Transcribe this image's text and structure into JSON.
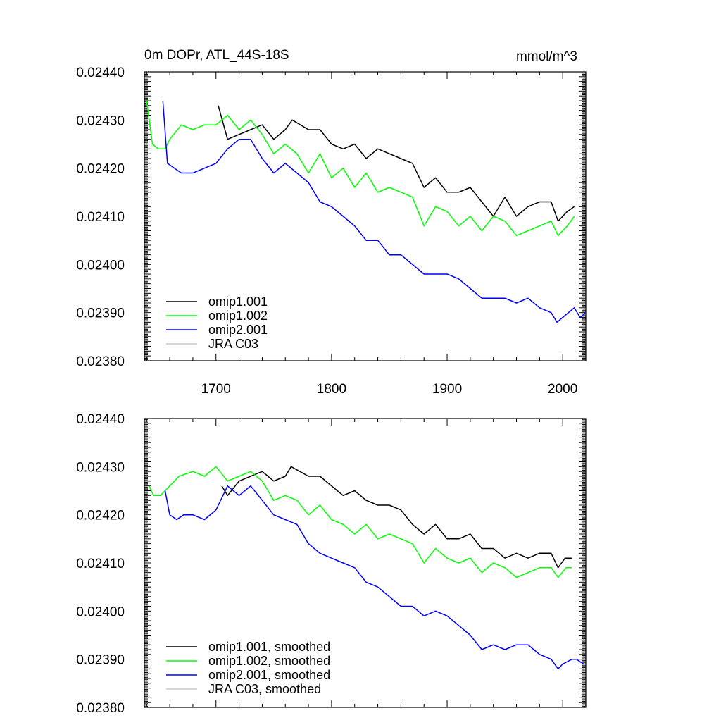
{
  "chart_data": [
    {
      "type": "line",
      "title_left": "0m DOPr, ATL_44S-18S",
      "title_right": "mmol/m^3",
      "xlim": [
        1638,
        2020
      ],
      "ylim": [
        0.0238,
        0.0244
      ],
      "x_ticks": [
        1700,
        1800,
        1900,
        2000
      ],
      "x_tick_labels": [
        "1700",
        "1800",
        "1900",
        "2000"
      ],
      "y_ticks": [
        0.0238,
        0.0239,
        0.024,
        0.0241,
        0.0242,
        0.0243,
        0.0244
      ],
      "y_tick_labels": [
        "0.02380",
        "0.02390",
        "0.02400",
        "0.02410",
        "0.02420",
        "0.02430",
        "0.02440"
      ],
      "grid": false,
      "legend_position": "bottom-left",
      "legend": [
        "omip1.001",
        "omip1.002",
        "omip2.001",
        "JRA C03"
      ],
      "series": [
        {
          "name": "omip1.001",
          "color": "#000000",
          "x": [
            1702,
            1710,
            1720,
            1730,
            1740,
            1750,
            1760,
            1766,
            1780,
            1790,
            1800,
            1810,
            1820,
            1830,
            1840,
            1850,
            1860,
            1870,
            1880,
            1890,
            1900,
            1910,
            1920,
            1930,
            1940,
            1950,
            1960,
            1970,
            1980,
            1990,
            1996,
            2004,
            2010
          ],
          "y": [
            0.02433,
            0.02426,
            0.02427,
            0.02428,
            0.02429,
            0.02426,
            0.02428,
            0.0243,
            0.02428,
            0.02428,
            0.02425,
            0.02424,
            0.02425,
            0.02422,
            0.02424,
            0.02423,
            0.02422,
            0.02421,
            0.02416,
            0.02418,
            0.02415,
            0.02415,
            0.02416,
            0.02413,
            0.0241,
            0.02414,
            0.0241,
            0.02412,
            0.02413,
            0.02413,
            0.02409,
            0.02411,
            0.02412
          ]
        },
        {
          "name": "omip1.002",
          "color": "#00ff00",
          "x": [
            1640,
            1645,
            1650,
            1656,
            1660,
            1670,
            1680,
            1690,
            1700,
            1710,
            1720,
            1730,
            1740,
            1750,
            1760,
            1770,
            1780,
            1790,
            1800,
            1810,
            1820,
            1830,
            1840,
            1850,
            1860,
            1870,
            1880,
            1890,
            1900,
            1910,
            1920,
            1930,
            1940,
            1950,
            1960,
            1970,
            1980,
            1990,
            1996,
            2004,
            2010
          ],
          "y": [
            0.02434,
            0.02425,
            0.02424,
            0.02424,
            0.02426,
            0.02429,
            0.02428,
            0.02429,
            0.02429,
            0.02431,
            0.02428,
            0.0243,
            0.02427,
            0.02423,
            0.02425,
            0.02423,
            0.02419,
            0.02423,
            0.02418,
            0.0242,
            0.02416,
            0.02419,
            0.02415,
            0.02416,
            0.02415,
            0.02414,
            0.02408,
            0.02412,
            0.02411,
            0.02408,
            0.0241,
            0.02407,
            0.0241,
            0.02409,
            0.02406,
            0.02407,
            0.02408,
            0.02409,
            0.02406,
            0.02408,
            0.0241
          ]
        },
        {
          "name": "omip2.001",
          "color": "#0000ff",
          "x": [
            1654,
            1658,
            1664,
            1670,
            1680,
            1690,
            1700,
            1710,
            1720,
            1730,
            1740,
            1750,
            1760,
            1770,
            1780,
            1790,
            1800,
            1810,
            1820,
            1830,
            1840,
            1850,
            1860,
            1870,
            1880,
            1890,
            1900,
            1910,
            1920,
            1930,
            1940,
            1950,
            1960,
            1970,
            1980,
            1990,
            1995,
            2000,
            2010,
            2015,
            2020
          ],
          "y": [
            0.02434,
            0.02421,
            0.0242,
            0.02419,
            0.02419,
            0.0242,
            0.02421,
            0.02424,
            0.02426,
            0.02426,
            0.02422,
            0.02419,
            0.02421,
            0.02419,
            0.02417,
            0.02413,
            0.02412,
            0.0241,
            0.02408,
            0.02405,
            0.02405,
            0.02402,
            0.02402,
            0.024,
            0.02398,
            0.02398,
            0.02398,
            0.02397,
            0.02395,
            0.02393,
            0.02393,
            0.02393,
            0.02392,
            0.02393,
            0.02391,
            0.0239,
            0.02388,
            0.02389,
            0.02391,
            0.02389,
            0.0239
          ]
        },
        {
          "name": "JRA C03",
          "color": "#c8c8c8",
          "x": [],
          "y": []
        }
      ]
    },
    {
      "type": "line",
      "xlim": [
        1638,
        2020
      ],
      "ylim": [
        0.0238,
        0.0244
      ],
      "x_ticks": [
        1700,
        1800,
        1900,
        2000
      ],
      "y_ticks": [
        0.0238,
        0.0239,
        0.024,
        0.0241,
        0.0242,
        0.0243,
        0.0244
      ],
      "y_tick_labels": [
        "0.02380",
        "0.02390",
        "0.02400",
        "0.02410",
        "0.02420",
        "0.02430",
        "0.02440"
      ],
      "grid": false,
      "legend_position": "bottom-left",
      "legend": [
        "omip1.001, smoothed",
        "omip1.002, smoothed",
        "omip2.001, smoothed",
        "JRA C03, smoothed"
      ],
      "series": [
        {
          "name": "omip1.001, smoothed",
          "color": "#000000",
          "x": [
            1705,
            1710,
            1720,
            1730,
            1740,
            1750,
            1760,
            1765,
            1780,
            1790,
            1800,
            1810,
            1820,
            1830,
            1840,
            1850,
            1860,
            1870,
            1880,
            1890,
            1900,
            1910,
            1920,
            1930,
            1940,
            1950,
            1960,
            1970,
            1980,
            1990,
            1996,
            2002,
            2008
          ],
          "y": [
            0.02426,
            0.02424,
            0.02427,
            0.02428,
            0.02429,
            0.02427,
            0.02428,
            0.0243,
            0.02428,
            0.02428,
            0.02426,
            0.02424,
            0.02425,
            0.02423,
            0.02422,
            0.02422,
            0.02421,
            0.02418,
            0.02416,
            0.02418,
            0.02415,
            0.02415,
            0.02416,
            0.02413,
            0.02413,
            0.02411,
            0.02412,
            0.02411,
            0.02412,
            0.02412,
            0.02409,
            0.02411,
            0.02411
          ]
        },
        {
          "name": "omip1.002, smoothed",
          "color": "#00ff00",
          "x": [
            1642,
            1646,
            1652,
            1660,
            1668,
            1680,
            1690,
            1700,
            1710,
            1720,
            1730,
            1740,
            1750,
            1760,
            1770,
            1780,
            1790,
            1800,
            1810,
            1820,
            1830,
            1840,
            1850,
            1860,
            1870,
            1880,
            1890,
            1900,
            1910,
            1920,
            1930,
            1940,
            1950,
            1960,
            1970,
            1980,
            1990,
            1996,
            2003,
            2008
          ],
          "y": [
            0.02426,
            0.02424,
            0.02424,
            0.02426,
            0.02428,
            0.02429,
            0.02428,
            0.0243,
            0.02427,
            0.02428,
            0.02429,
            0.02427,
            0.02423,
            0.02424,
            0.02423,
            0.0242,
            0.02422,
            0.02419,
            0.02418,
            0.02416,
            0.02418,
            0.02415,
            0.02416,
            0.02415,
            0.02414,
            0.0241,
            0.02413,
            0.02411,
            0.0241,
            0.02411,
            0.02408,
            0.0241,
            0.02409,
            0.02407,
            0.02408,
            0.02409,
            0.02409,
            0.02407,
            0.02409,
            0.02409
          ]
        },
        {
          "name": "omip2.001, smoothed",
          "color": "#0000ff",
          "x": [
            1656,
            1660,
            1666,
            1672,
            1680,
            1690,
            1700,
            1710,
            1720,
            1730,
            1740,
            1750,
            1760,
            1770,
            1780,
            1790,
            1800,
            1810,
            1820,
            1830,
            1840,
            1850,
            1860,
            1870,
            1880,
            1890,
            1900,
            1910,
            1920,
            1930,
            1940,
            1950,
            1960,
            1970,
            1980,
            1990,
            1996,
            2000,
            2008,
            2012,
            2018
          ],
          "y": [
            0.02425,
            0.0242,
            0.02419,
            0.0242,
            0.0242,
            0.02419,
            0.02421,
            0.02426,
            0.02424,
            0.02426,
            0.02423,
            0.0242,
            0.02419,
            0.02418,
            0.02414,
            0.02412,
            0.02411,
            0.0241,
            0.02409,
            0.02406,
            0.02405,
            0.02403,
            0.02401,
            0.02401,
            0.02399,
            0.024,
            0.02399,
            0.02397,
            0.02395,
            0.02392,
            0.02393,
            0.02392,
            0.02393,
            0.02393,
            0.02391,
            0.0239,
            0.02388,
            0.02389,
            0.0239,
            0.0239,
            0.02389
          ]
        },
        {
          "name": "JRA C03, smoothed",
          "color": "#c8c8c8",
          "x": [],
          "y": []
        }
      ]
    }
  ]
}
